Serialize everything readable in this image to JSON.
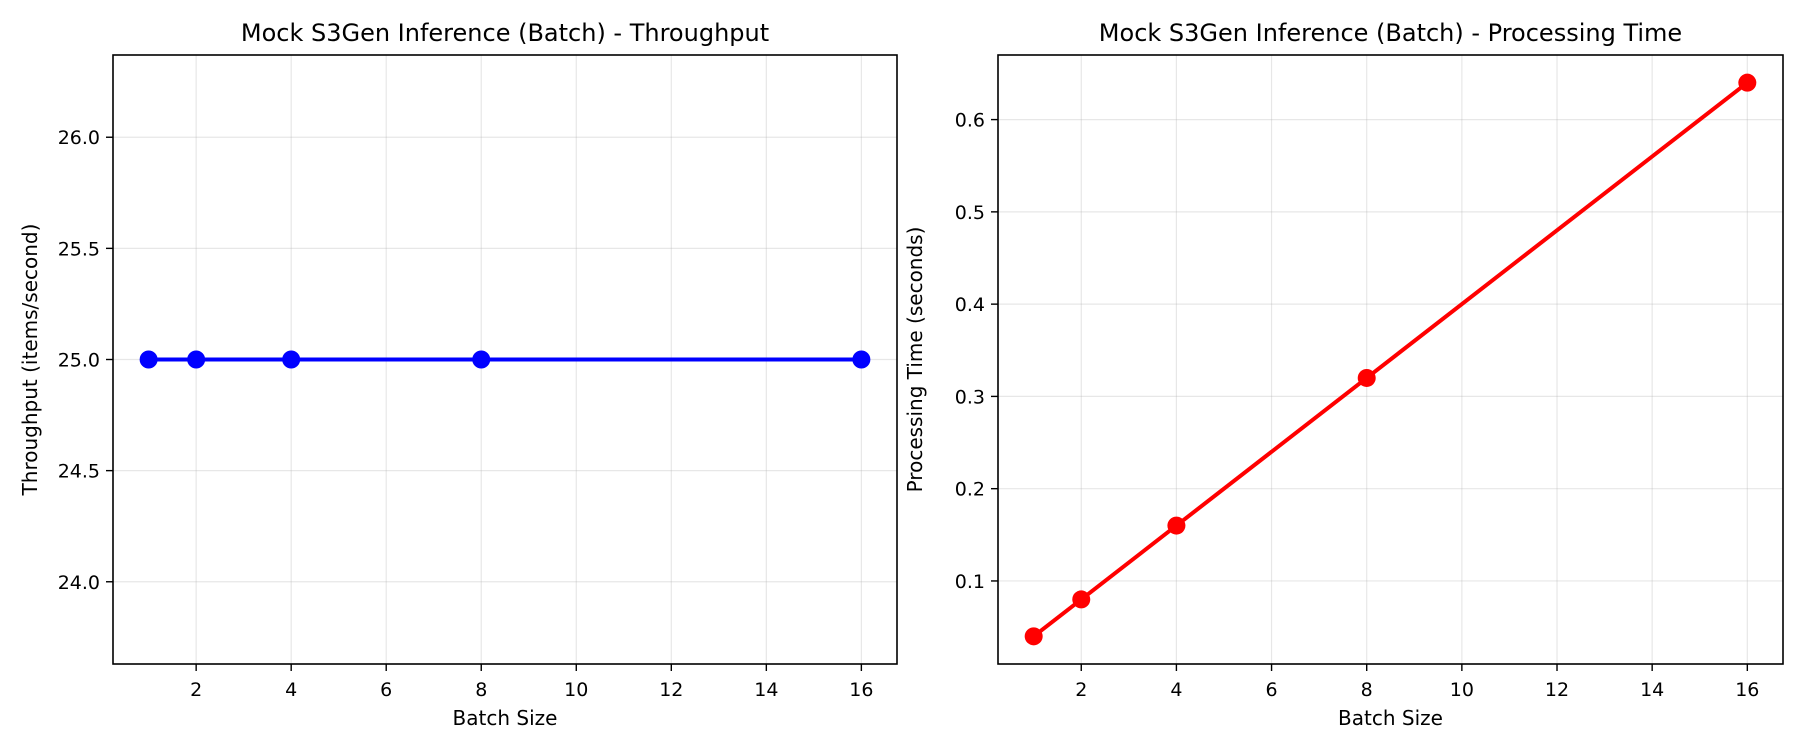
{
  "chart_data": [
    {
      "type": "line",
      "title": "Mock S3Gen Inference (Batch) - Throughput",
      "xlabel": "Batch Size",
      "ylabel": "Throughput (items/second)",
      "x": [
        1,
        2,
        4,
        8,
        16
      ],
      "xticks": [
        2,
        4,
        6,
        8,
        10,
        12,
        14,
        16
      ],
      "xlim": [
        0.25,
        16.75
      ],
      "yticks": [
        24.0,
        24.5,
        25.0,
        25.5,
        26.0
      ],
      "ylim": [
        23.63,
        26.37
      ],
      "grid": true,
      "series": [
        {
          "values": [
            25.0,
            25.0,
            25.0,
            25.0,
            25.0
          ],
          "color": "#0000ff",
          "marker": "circle"
        }
      ]
    },
    {
      "type": "line",
      "title": "Mock S3Gen Inference (Batch) - Processing Time",
      "xlabel": "Batch Size",
      "ylabel": "Processing Time (seconds)",
      "x": [
        1,
        2,
        4,
        8,
        16
      ],
      "xticks": [
        2,
        4,
        6,
        8,
        10,
        12,
        14,
        16
      ],
      "xlim": [
        0.25,
        16.75
      ],
      "yticks": [
        0.1,
        0.2,
        0.3,
        0.4,
        0.5,
        0.6
      ],
      "ylim": [
        0.01,
        0.67
      ],
      "grid": true,
      "series": [
        {
          "values": [
            0.04,
            0.08,
            0.16,
            0.32,
            0.64
          ],
          "color": "#ff0000",
          "marker": "circle"
        }
      ]
    }
  ]
}
